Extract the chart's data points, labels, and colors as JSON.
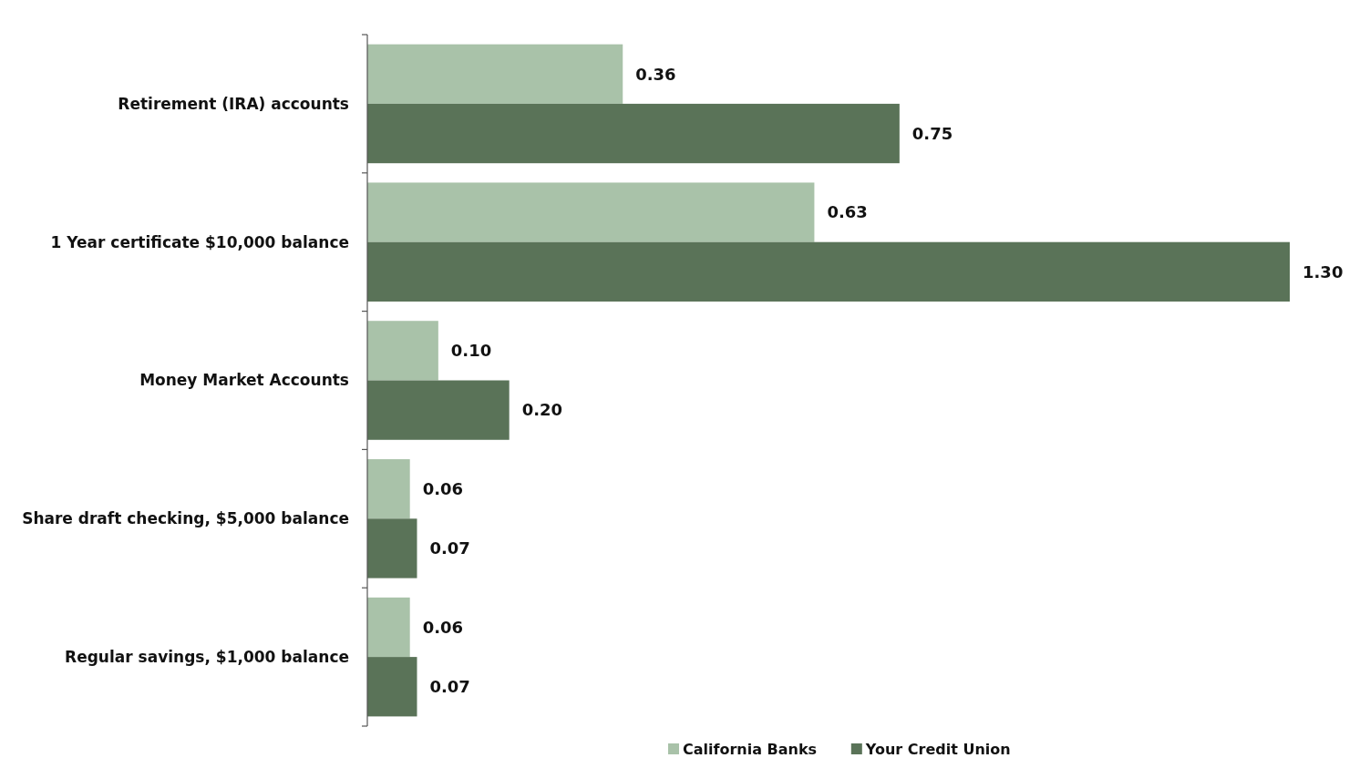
{
  "chart_data": {
    "type": "bar",
    "orientation": "horizontal",
    "categories": [
      "Retirement (IRA) accounts",
      "1 Year certificate $10,000 balance",
      "Money Market Accounts",
      "Share draft checking, $5,000 balance",
      "Regular savings, $1,000 balance"
    ],
    "series": [
      {
        "name": "California Banks",
        "color": "#a9c2a9",
        "values": [
          0.36,
          0.63,
          0.1,
          0.06,
          0.06
        ],
        "value_labels": [
          "0.36",
          "0.63",
          "0.10",
          "0.06",
          "0.06"
        ]
      },
      {
        "name": "Your Credit Union",
        "color": "#5a7358",
        "values": [
          0.75,
          1.3,
          0.2,
          0.07,
          0.07
        ],
        "value_labels": [
          "0.75",
          "1.30",
          "0.20",
          "0.07",
          "0.07"
        ]
      }
    ],
    "legend": "bottom",
    "grid": false
  }
}
